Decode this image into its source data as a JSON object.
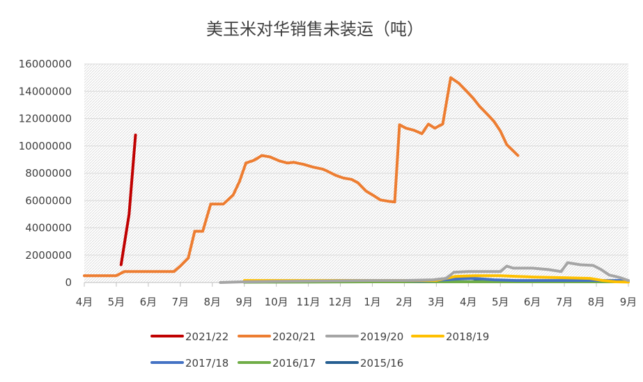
{
  "chart_data": {
    "type": "line",
    "title": "美玉米对华销售未装运（吨）",
    "xlabel": "",
    "ylabel": "",
    "ylim": [
      0,
      16000000
    ],
    "yticks": [
      "0",
      "2000000",
      "4000000",
      "6000000",
      "8000000",
      "10000000",
      "12000000",
      "14000000",
      "16000000"
    ],
    "xticks": [
      "4月",
      "5月",
      "6月",
      "7月",
      "8月",
      "9月",
      "10月",
      "11月",
      "12月",
      "1月",
      "2月",
      "3月",
      "4月",
      "5月",
      "6月",
      "7月",
      "8月",
      "9月"
    ],
    "xlim": [
      0,
      17
    ],
    "grid": true,
    "legend_position": "bottom",
    "colors": {
      "2021/22": "#c00000",
      "2020/21": "#ed7d31",
      "2019/20": "#a5a5a5",
      "2018/19": "#ffc000",
      "2017/18": "#4472c4",
      "2016/17": "#70ad47",
      "2015/16": "#255e91"
    },
    "series": [
      {
        "name": "2021/22",
        "points": [
          [
            1.15,
            1300000
          ],
          [
            1.4,
            5000000
          ],
          [
            1.6,
            10800000
          ]
        ]
      },
      {
        "name": "2020/21",
        "points": [
          [
            0,
            500000
          ],
          [
            1.0,
            500000
          ],
          [
            1.25,
            800000
          ],
          [
            2.0,
            800000
          ],
          [
            2.8,
            800000
          ],
          [
            3.0,
            1200000
          ],
          [
            3.25,
            1800000
          ],
          [
            3.45,
            3750000
          ],
          [
            3.7,
            3750000
          ],
          [
            3.95,
            5750000
          ],
          [
            4.35,
            5750000
          ],
          [
            4.65,
            6400000
          ],
          [
            4.85,
            7400000
          ],
          [
            5.05,
            8750000
          ],
          [
            5.3,
            8950000
          ],
          [
            5.55,
            9300000
          ],
          [
            5.8,
            9200000
          ],
          [
            6.1,
            8900000
          ],
          [
            6.35,
            8750000
          ],
          [
            6.55,
            8800000
          ],
          [
            6.85,
            8650000
          ],
          [
            7.15,
            8450000
          ],
          [
            7.45,
            8300000
          ],
          [
            7.6,
            8150000
          ],
          [
            7.85,
            7850000
          ],
          [
            8.1,
            7650000
          ],
          [
            8.35,
            7550000
          ],
          [
            8.55,
            7300000
          ],
          [
            8.8,
            6700000
          ],
          [
            9.05,
            6350000
          ],
          [
            9.25,
            6050000
          ],
          [
            9.5,
            5950000
          ],
          [
            9.7,
            5900000
          ],
          [
            9.85,
            11550000
          ],
          [
            10.05,
            11300000
          ],
          [
            10.3,
            11150000
          ],
          [
            10.55,
            10900000
          ],
          [
            10.75,
            11600000
          ],
          [
            10.95,
            11300000
          ],
          [
            11.2,
            11600000
          ],
          [
            11.45,
            15000000
          ],
          [
            11.7,
            14600000
          ],
          [
            11.95,
            14000000
          ],
          [
            12.15,
            13500000
          ],
          [
            12.35,
            12900000
          ],
          [
            12.6,
            12300000
          ],
          [
            12.8,
            11800000
          ],
          [
            13.0,
            11100000
          ],
          [
            13.2,
            10100000
          ],
          [
            13.55,
            9300000
          ]
        ]
      },
      {
        "name": "2019/20",
        "points": [
          [
            4.25,
            0
          ],
          [
            5.0,
            50000
          ],
          [
            6.0,
            80000
          ],
          [
            7.0,
            100000
          ],
          [
            8.0,
            120000
          ],
          [
            9.0,
            150000
          ],
          [
            10.0,
            150000
          ],
          [
            10.9,
            200000
          ],
          [
            11.3,
            300000
          ],
          [
            11.55,
            750000
          ],
          [
            12.0,
            800000
          ],
          [
            13.0,
            800000
          ],
          [
            13.2,
            1200000
          ],
          [
            13.4,
            1050000
          ],
          [
            14.0,
            1050000
          ],
          [
            14.5,
            950000
          ],
          [
            14.9,
            800000
          ],
          [
            15.1,
            1450000
          ],
          [
            15.5,
            1300000
          ],
          [
            15.9,
            1250000
          ],
          [
            16.15,
            950000
          ],
          [
            16.4,
            550000
          ],
          [
            16.75,
            350000
          ],
          [
            17.0,
            150000
          ]
        ]
      },
      {
        "name": "2018/19",
        "points": [
          [
            5.0,
            150000
          ],
          [
            6.0,
            150000
          ],
          [
            7.0,
            150000
          ],
          [
            8.0,
            150000
          ],
          [
            9.0,
            150000
          ],
          [
            10.0,
            150000
          ],
          [
            11.0,
            150000
          ],
          [
            11.6,
            450000
          ],
          [
            12.2,
            500000
          ],
          [
            13.0,
            500000
          ],
          [
            13.5,
            450000
          ],
          [
            14.0,
            400000
          ],
          [
            15.0,
            350000
          ],
          [
            15.8,
            300000
          ],
          [
            16.2,
            150000
          ],
          [
            16.6,
            50000
          ],
          [
            17.0,
            30000
          ]
        ]
      },
      {
        "name": "2017/18",
        "points": [
          [
            5.0,
            50000
          ],
          [
            6.0,
            100000
          ],
          [
            7.0,
            120000
          ],
          [
            8.0,
            150000
          ],
          [
            9.0,
            150000
          ],
          [
            10.0,
            150000
          ],
          [
            10.5,
            100000
          ],
          [
            11.0,
            150000
          ],
          [
            11.6,
            250000
          ],
          [
            12.2,
            300000
          ],
          [
            12.8,
            200000
          ],
          [
            13.5,
            150000
          ],
          [
            14.5,
            150000
          ],
          [
            15.5,
            150000
          ],
          [
            16.5,
            150000
          ],
          [
            17.0,
            150000
          ]
        ]
      },
      {
        "name": "2016/17",
        "points": [
          [
            5.0,
            20000
          ],
          [
            7.0,
            30000
          ],
          [
            9.0,
            50000
          ],
          [
            11.0,
            50000
          ],
          [
            13.0,
            50000
          ],
          [
            15.0,
            50000
          ],
          [
            17.0,
            50000
          ]
        ]
      },
      {
        "name": "2015/16",
        "points": [
          [
            5.0,
            30000
          ],
          [
            7.0,
            50000
          ],
          [
            9.0,
            80000
          ],
          [
            10.5,
            100000
          ],
          [
            11.3,
            250000
          ],
          [
            12.0,
            350000
          ],
          [
            12.4,
            150000
          ],
          [
            13.0,
            120000
          ],
          [
            14.0,
            100000
          ],
          [
            15.0,
            100000
          ],
          [
            16.0,
            100000
          ],
          [
            17.0,
            100000
          ]
        ]
      }
    ]
  }
}
